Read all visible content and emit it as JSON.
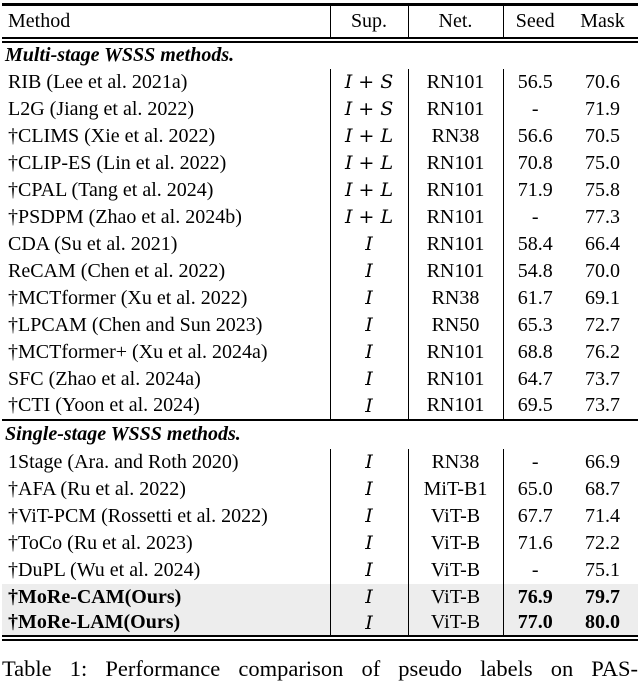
{
  "table": {
    "headers": {
      "method": "Method",
      "sup": "Sup.",
      "net": "Net.",
      "seed": "Seed",
      "mask": "Mask"
    },
    "sections": [
      {
        "title": "Multi-stage WSSS methods.",
        "rows": [
          {
            "method": "RIB (Lee et al. 2021a)",
            "sup": "I + S",
            "net": "RN101",
            "seed": "56.5",
            "mask": "70.6",
            "bold": false,
            "highlight": false
          },
          {
            "method": "L2G (Jiang et al. 2022)",
            "sup": "I + S",
            "net": "RN101",
            "seed": "-",
            "mask": "71.9",
            "bold": false,
            "highlight": false
          },
          {
            "method": "†CLIMS (Xie et al. 2022)",
            "sup": "I + L",
            "net": "RN38",
            "seed": "56.6",
            "mask": "70.5",
            "bold": false,
            "highlight": false
          },
          {
            "method": "†CLIP-ES (Lin et al. 2022)",
            "sup": "I + L",
            "net": "RN101",
            "seed": "70.8",
            "mask": "75.0",
            "bold": false,
            "highlight": false
          },
          {
            "method": "†CPAL (Tang et al. 2024)",
            "sup": "I + L",
            "net": "RN101",
            "seed": "71.9",
            "mask": "75.8",
            "bold": false,
            "highlight": false
          },
          {
            "method": "†PSDPM (Zhao et al. 2024b)",
            "sup": "I + L",
            "net": "RN101",
            "seed": "-",
            "mask": "77.3",
            "bold": false,
            "highlight": false
          },
          {
            "method": "CDA (Su et al. 2021)",
            "sup": "I",
            "net": "RN101",
            "seed": "58.4",
            "mask": "66.4",
            "bold": false,
            "highlight": false
          },
          {
            "method": "ReCAM (Chen et al. 2022)",
            "sup": "I",
            "net": "RN101",
            "seed": "54.8",
            "mask": "70.0",
            "bold": false,
            "highlight": false
          },
          {
            "method": "†MCTformer (Xu et al. 2022)",
            "sup": "I",
            "net": "RN38",
            "seed": "61.7",
            "mask": "69.1",
            "bold": false,
            "highlight": false
          },
          {
            "method": "†LPCAM (Chen and Sun 2023)",
            "sup": "I",
            "net": "RN50",
            "seed": "65.3",
            "mask": "72.7",
            "bold": false,
            "highlight": false
          },
          {
            "method": "†MCTformer+ (Xu et al. 2024a)",
            "sup": "I",
            "net": "RN101",
            "seed": "68.8",
            "mask": "76.2",
            "bold": false,
            "highlight": false
          },
          {
            "method": "SFC (Zhao et al. 2024a)",
            "sup": "I",
            "net": "RN101",
            "seed": "64.7",
            "mask": "73.7",
            "bold": false,
            "highlight": false
          },
          {
            "method": "†CTI (Yoon et al. 2024)",
            "sup": "I",
            "net": "RN101",
            "seed": "69.5",
            "mask": "73.7",
            "bold": false,
            "highlight": false
          }
        ]
      },
      {
        "title": "Single-stage WSSS methods.",
        "rows": [
          {
            "method": "1Stage (Ara. and Roth 2020)",
            "sup": "I",
            "net": "RN38",
            "seed": "-",
            "mask": "66.9",
            "bold": false,
            "highlight": false
          },
          {
            "method": "†AFA (Ru et al. 2022)",
            "sup": "I",
            "net": "MiT-B1",
            "seed": "65.0",
            "mask": "68.7",
            "bold": false,
            "highlight": false
          },
          {
            "method": "†ViT-PCM (Rossetti et al. 2022)",
            "sup": "I",
            "net": "ViT-B",
            "seed": "67.7",
            "mask": "71.4",
            "bold": false,
            "highlight": false
          },
          {
            "method": "†ToCo (Ru et al. 2023)",
            "sup": "I",
            "net": "ViT-B",
            "seed": "71.6",
            "mask": "72.2",
            "bold": false,
            "highlight": false
          },
          {
            "method": "†DuPL (Wu et al. 2024)",
            "sup": "I",
            "net": "ViT-B",
            "seed": "-",
            "mask": "75.1",
            "bold": false,
            "highlight": false
          },
          {
            "method": "†MoRe-CAM(Ours)",
            "sup": "I",
            "net": "ViT-B",
            "seed": "76.9",
            "mask": "79.7",
            "bold": true,
            "highlight": true
          },
          {
            "method": "†MoRe-LAM(Ours)",
            "sup": "I",
            "net": "ViT-B",
            "seed": "77.0",
            "mask": "80.0",
            "bold": true,
            "highlight": true
          }
        ]
      }
    ]
  },
  "caption": {
    "text": "Table 1: Performance comparison of pseudo labels on PAS-"
  },
  "colors": {
    "highlight": "#ededed",
    "text": "#000000",
    "rule": "#000000",
    "background": "#ffffff"
  }
}
